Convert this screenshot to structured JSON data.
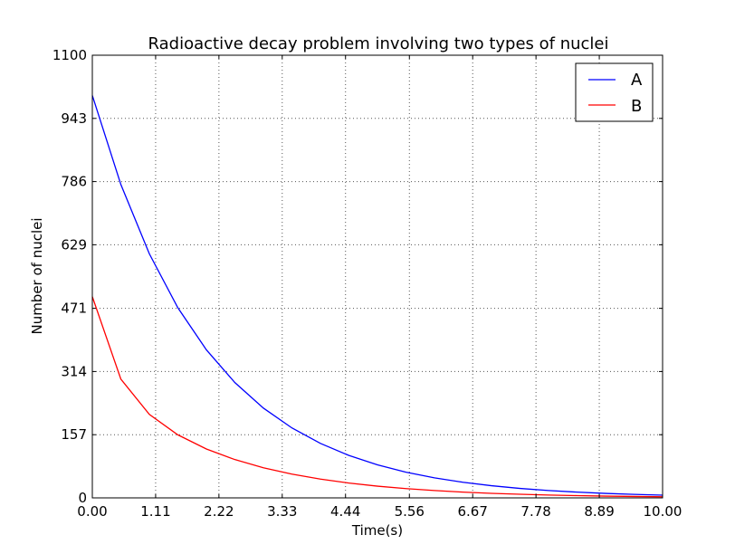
{
  "chart_data": {
    "type": "line",
    "title": "Radioactive decay problem involving two types of nuclei",
    "xlabel": "Time(s)",
    "ylabel": "Number of nuclei",
    "xlim": [
      0,
      10
    ],
    "ylim": [
      0,
      1100
    ],
    "x_ticks": [
      "0.00",
      "1.11",
      "2.22",
      "3.33",
      "4.44",
      "5.56",
      "6.67",
      "7.78",
      "8.89",
      "10.00"
    ],
    "y_ticks": [
      "0",
      "157",
      "314",
      "471",
      "629",
      "786",
      "943",
      "1100"
    ],
    "grid": true,
    "legend_position": "top-right",
    "x": [
      0,
      0.5,
      1,
      1.5,
      2,
      2.5,
      3,
      3.5,
      4,
      4.5,
      5,
      5.5,
      6,
      6.5,
      7,
      7.5,
      8,
      8.5,
      9,
      9.5,
      10
    ],
    "series": [
      {
        "name": "A",
        "color": "#0000ff",
        "values": [
          1000,
          778.8,
          606.5,
          472.4,
          367.9,
          286.5,
          223.1,
          173.8,
          135.3,
          105.4,
          82.1,
          63.9,
          49.8,
          38.8,
          30.2,
          23.5,
          18.3,
          14.3,
          11.1,
          8.7,
          6.7
        ]
      },
      {
        "name": "B",
        "color": "#ff0000",
        "values": [
          500,
          295.2,
          207.4,
          156.6,
          121.5,
          95.2,
          74.9,
          59.1,
          46.6,
          36.8,
          29.1,
          23.0,
          18.2,
          14.3,
          11.3,
          9.0,
          7.1,
          5.6,
          4.4,
          3.5,
          2.8
        ]
      }
    ]
  }
}
